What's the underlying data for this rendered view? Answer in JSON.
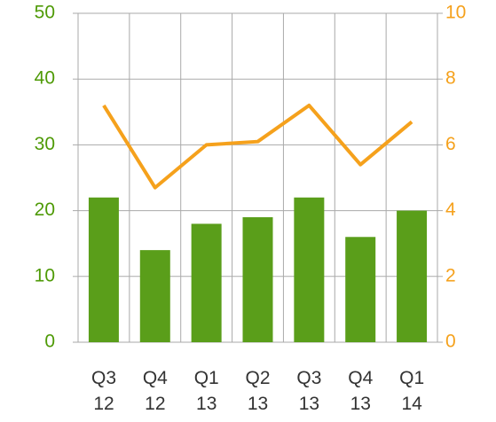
{
  "chart_data": {
    "type": "bar",
    "categories": [
      "Q3\n12",
      "Q4\n12",
      "Q1\n13",
      "Q2\n13",
      "Q3\n13",
      "Q4\n13",
      "Q1\n14"
    ],
    "series": [
      {
        "type": "bar",
        "color": "#5a9e1a",
        "values": [
          22,
          14,
          18,
          19,
          22,
          16,
          20
        ]
      },
      {
        "type": "line",
        "axis": "y2",
        "color": "#f5a11c",
        "values": [
          7.2,
          4.7,
          6.0,
          6.1,
          7.2,
          5.4,
          6.7
        ]
      }
    ],
    "ylim": [
      0,
      50
    ],
    "yticks": [
      0,
      10,
      20,
      30,
      40,
      50
    ],
    "ytick_color": "#4e9a06",
    "y2lim": [
      0,
      10
    ],
    "y2ticks": [
      0,
      2,
      4,
      6,
      8,
      10
    ],
    "y2tick_color": "#f5a11c",
    "grid": true
  }
}
